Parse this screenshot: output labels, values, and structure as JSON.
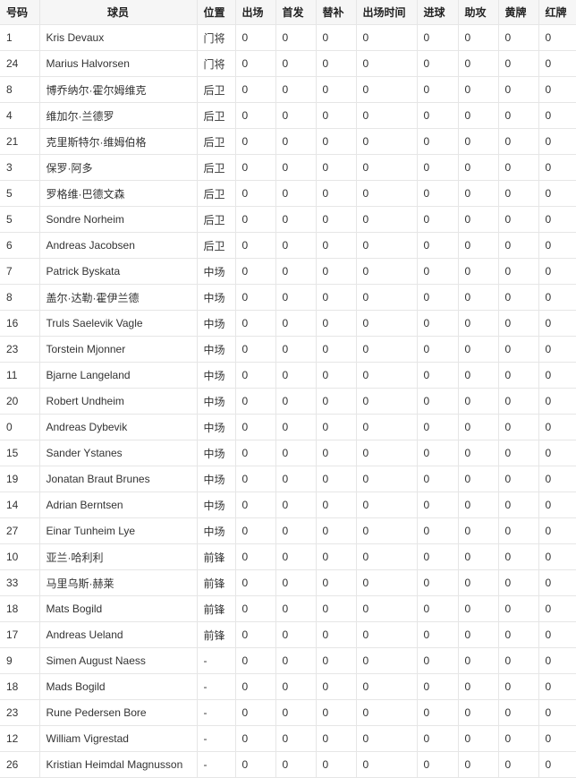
{
  "table": {
    "headers": [
      "号码",
      "球员",
      "位置",
      "出场",
      "首发",
      "替补",
      "出场时间",
      "进球",
      "助攻",
      "黄牌",
      "红牌"
    ],
    "rows": [
      {
        "number": "1",
        "name": "Kris Devaux",
        "position": "门将",
        "stats": [
          0,
          0,
          0,
          0,
          0,
          0,
          0,
          0
        ]
      },
      {
        "number": "24",
        "name": "Marius Halvorsen",
        "position": "门将",
        "stats": [
          0,
          0,
          0,
          0,
          0,
          0,
          0,
          0
        ]
      },
      {
        "number": "8",
        "name": "博乔纳尔·霍尔姆维克",
        "position": "后卫",
        "stats": [
          0,
          0,
          0,
          0,
          0,
          0,
          0,
          0
        ]
      },
      {
        "number": "4",
        "name": "维加尔·兰德罗",
        "position": "后卫",
        "stats": [
          0,
          0,
          0,
          0,
          0,
          0,
          0,
          0
        ]
      },
      {
        "number": "21",
        "name": "克里斯特尔·维姆伯格",
        "position": "后卫",
        "stats": [
          0,
          0,
          0,
          0,
          0,
          0,
          0,
          0
        ]
      },
      {
        "number": "3",
        "name": "保罗·阿多",
        "position": "后卫",
        "stats": [
          0,
          0,
          0,
          0,
          0,
          0,
          0,
          0
        ]
      },
      {
        "number": "5",
        "name": "罗格维·巴德文森",
        "position": "后卫",
        "stats": [
          0,
          0,
          0,
          0,
          0,
          0,
          0,
          0
        ]
      },
      {
        "number": "5",
        "name": "Sondre Norheim",
        "position": "后卫",
        "stats": [
          0,
          0,
          0,
          0,
          0,
          0,
          0,
          0
        ]
      },
      {
        "number": "6",
        "name": "Andreas Jacobsen",
        "position": "后卫",
        "stats": [
          0,
          0,
          0,
          0,
          0,
          0,
          0,
          0
        ]
      },
      {
        "number": "7",
        "name": "Patrick Byskata",
        "position": "中场",
        "stats": [
          0,
          0,
          0,
          0,
          0,
          0,
          0,
          0
        ]
      },
      {
        "number": "8",
        "name": "盖尔·达勒·霍伊兰德",
        "position": "中场",
        "stats": [
          0,
          0,
          0,
          0,
          0,
          0,
          0,
          0
        ]
      },
      {
        "number": "16",
        "name": "Truls Saelevik Vagle",
        "position": "中场",
        "stats": [
          0,
          0,
          0,
          0,
          0,
          0,
          0,
          0
        ]
      },
      {
        "number": "23",
        "name": "Torstein Mjonner",
        "position": "中场",
        "stats": [
          0,
          0,
          0,
          0,
          0,
          0,
          0,
          0
        ]
      },
      {
        "number": "11",
        "name": "Bjarne Langeland",
        "position": "中场",
        "stats": [
          0,
          0,
          0,
          0,
          0,
          0,
          0,
          0
        ]
      },
      {
        "number": "20",
        "name": "Robert Undheim",
        "position": "中场",
        "stats": [
          0,
          0,
          0,
          0,
          0,
          0,
          0,
          0
        ]
      },
      {
        "number": "0",
        "name": "Andreas Dybevik",
        "position": "中场",
        "stats": [
          0,
          0,
          0,
          0,
          0,
          0,
          0,
          0
        ]
      },
      {
        "number": "15",
        "name": "Sander Ystanes",
        "position": "中场",
        "stats": [
          0,
          0,
          0,
          0,
          0,
          0,
          0,
          0
        ]
      },
      {
        "number": "19",
        "name": "Jonatan Braut Brunes",
        "position": "中场",
        "stats": [
          0,
          0,
          0,
          0,
          0,
          0,
          0,
          0
        ]
      },
      {
        "number": "14",
        "name": "Adrian Berntsen",
        "position": "中场",
        "stats": [
          0,
          0,
          0,
          0,
          0,
          0,
          0,
          0
        ]
      },
      {
        "number": "27",
        "name": "Einar Tunheim Lye",
        "position": "中场",
        "stats": [
          0,
          0,
          0,
          0,
          0,
          0,
          0,
          0
        ]
      },
      {
        "number": "10",
        "name": "亚兰·哈利利",
        "position": "前锋",
        "stats": [
          0,
          0,
          0,
          0,
          0,
          0,
          0,
          0
        ]
      },
      {
        "number": "33",
        "name": "马里乌斯·赫莱",
        "position": "前锋",
        "stats": [
          0,
          0,
          0,
          0,
          0,
          0,
          0,
          0
        ]
      },
      {
        "number": "18",
        "name": "Mats Bogild",
        "position": "前锋",
        "stats": [
          0,
          0,
          0,
          0,
          0,
          0,
          0,
          0
        ]
      },
      {
        "number": "17",
        "name": "Andreas Ueland",
        "position": "前锋",
        "stats": [
          0,
          0,
          0,
          0,
          0,
          0,
          0,
          0
        ]
      },
      {
        "number": "9",
        "name": "Simen August Naess",
        "position": "-",
        "stats": [
          0,
          0,
          0,
          0,
          0,
          0,
          0,
          0
        ]
      },
      {
        "number": "18",
        "name": "Mads Bogild",
        "position": "-",
        "stats": [
          0,
          0,
          0,
          0,
          0,
          0,
          0,
          0
        ]
      },
      {
        "number": "23",
        "name": "Rune Pedersen Bore",
        "position": "-",
        "stats": [
          0,
          0,
          0,
          0,
          0,
          0,
          0,
          0
        ]
      },
      {
        "number": "12",
        "name": "William Vigrestad",
        "position": "-",
        "stats": [
          0,
          0,
          0,
          0,
          0,
          0,
          0,
          0
        ]
      },
      {
        "number": "26",
        "name": "Kristian Heimdal Magnusson",
        "position": "-",
        "stats": [
          0,
          0,
          0,
          0,
          0,
          0,
          0,
          0
        ]
      }
    ]
  }
}
